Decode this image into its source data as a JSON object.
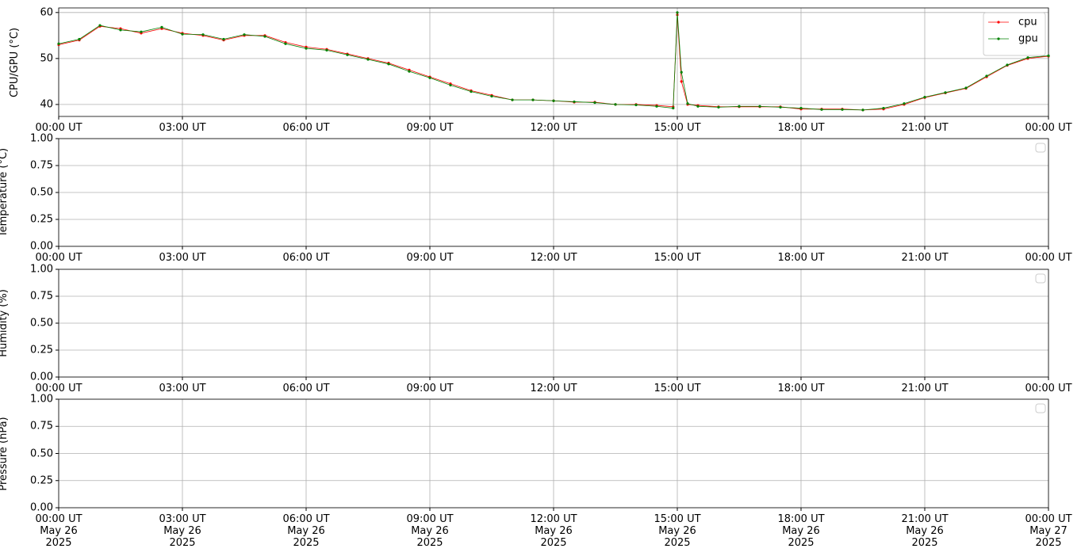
{
  "chart_data": [
    {
      "type": "line",
      "ylabel": "CPU/GPU (°C)",
      "grid": true,
      "legend": "upper right",
      "x": [
        0,
        0.5,
        1,
        1.5,
        2,
        2.5,
        3,
        3.5,
        4,
        4.5,
        5,
        5.5,
        6,
        6.5,
        7,
        7.5,
        8,
        8.5,
        9,
        9.5,
        10,
        10.5,
        11,
        11.5,
        12,
        12.5,
        13,
        13.5,
        14,
        14.5,
        14.9,
        15,
        15.1,
        15.25,
        15.5,
        16,
        16.5,
        17,
        17.5,
        18,
        18.5,
        19,
        19.5,
        20,
        20.5,
        21,
        21.5,
        22,
        22.5,
        23,
        23.5,
        24
      ],
      "series": [
        {
          "name": "cpu",
          "color": "#ff0000",
          "values": [
            53,
            54,
            57,
            56.5,
            55.5,
            56.5,
            55.5,
            55,
            54,
            55,
            55,
            53.5,
            52.5,
            52,
            51,
            50,
            49,
            47.5,
            46,
            44.5,
            43,
            42,
            41,
            41,
            40.8,
            40.5,
            40.5,
            40,
            40,
            39.8,
            39.5,
            59.5,
            45,
            40,
            39.8,
            39.5,
            39.5,
            39.5,
            39.5,
            39,
            39,
            39,
            38.8,
            39,
            40,
            41.5,
            42.5,
            43.5,
            46,
            48.5,
            50,
            50.5
          ]
        },
        {
          "name": "gpu",
          "color": "#008000",
          "values": [
            53.2,
            54.2,
            57.2,
            56.2,
            55.8,
            56.8,
            55.3,
            55.2,
            54.2,
            55.2,
            54.8,
            53.2,
            52.2,
            51.8,
            50.8,
            49.8,
            48.8,
            47.2,
            45.8,
            44.2,
            42.8,
            41.8,
            41,
            41,
            40.8,
            40.6,
            40.4,
            40,
            39.9,
            39.6,
            39.2,
            60,
            47,
            40.2,
            39.6,
            39.4,
            39.6,
            39.6,
            39.4,
            39.2,
            38.9,
            38.9,
            38.8,
            39.2,
            40.2,
            41.6,
            42.6,
            43.6,
            46.2,
            48.6,
            50.2,
            50.6
          ]
        }
      ],
      "xlim": [
        0,
        24
      ],
      "ylim": [
        37.4,
        61.0
      ],
      "yticks": [
        40,
        50,
        60
      ],
      "xticks": [
        {
          "value": 0,
          "label": "00:00 UT"
        },
        {
          "value": 3,
          "label": "03:00 UT"
        },
        {
          "value": 6,
          "label": "06:00 UT"
        },
        {
          "value": 9,
          "label": "09:00 UT"
        },
        {
          "value": 12,
          "label": "12:00 UT"
        },
        {
          "value": 15,
          "label": "15:00 UT"
        },
        {
          "value": 18,
          "label": "18:00 UT"
        },
        {
          "value": 21,
          "label": "21:00 UT"
        },
        {
          "value": 24,
          "label": "00:00 UT"
        }
      ]
    },
    {
      "type": "line",
      "ylabel": "Temperature (°C)",
      "grid": true,
      "legend": "upper right",
      "x": [],
      "series": [],
      "xlim": [
        0,
        24
      ],
      "ylim": [
        0,
        1
      ],
      "yticks": [
        {
          "value": 0,
          "label": "0.00"
        },
        {
          "value": 0.25,
          "label": "0.25"
        },
        {
          "value": 0.5,
          "label": "0.50"
        },
        {
          "value": 0.75,
          "label": "0.75"
        },
        {
          "value": 1,
          "label": "1.00"
        }
      ],
      "xticks": [
        {
          "value": 0,
          "label": "00:00 UT"
        },
        {
          "value": 3,
          "label": "03:00 UT"
        },
        {
          "value": 6,
          "label": "06:00 UT"
        },
        {
          "value": 9,
          "label": "09:00 UT"
        },
        {
          "value": 12,
          "label": "12:00 UT"
        },
        {
          "value": 15,
          "label": "15:00 UT"
        },
        {
          "value": 18,
          "label": "18:00 UT"
        },
        {
          "value": 21,
          "label": "21:00 UT"
        },
        {
          "value": 24,
          "label": "00:00 UT"
        }
      ]
    },
    {
      "type": "line",
      "ylabel": "Humidity (%)",
      "grid": true,
      "legend": "upper right",
      "x": [],
      "series": [],
      "xlim": [
        0,
        24
      ],
      "ylim": [
        0,
        1
      ],
      "yticks": [
        {
          "value": 0,
          "label": "0.00"
        },
        {
          "value": 0.25,
          "label": "0.25"
        },
        {
          "value": 0.5,
          "label": "0.50"
        },
        {
          "value": 0.75,
          "label": "0.75"
        },
        {
          "value": 1,
          "label": "1.00"
        }
      ],
      "xticks": [
        {
          "value": 0,
          "label": "00:00 UT"
        },
        {
          "value": 3,
          "label": "03:00 UT"
        },
        {
          "value": 6,
          "label": "06:00 UT"
        },
        {
          "value": 9,
          "label": "09:00 UT"
        },
        {
          "value": 12,
          "label": "12:00 UT"
        },
        {
          "value": 15,
          "label": "15:00 UT"
        },
        {
          "value": 18,
          "label": "18:00 UT"
        },
        {
          "value": 21,
          "label": "21:00 UT"
        },
        {
          "value": 24,
          "label": "00:00 UT"
        }
      ]
    },
    {
      "type": "line",
      "ylabel": "Pressure (hPa)",
      "grid": true,
      "legend": "upper right",
      "x": [],
      "series": [],
      "xlim": [
        0,
        24
      ],
      "ylim": [
        0,
        1
      ],
      "yticks": [
        {
          "value": 0,
          "label": "0.00"
        },
        {
          "value": 0.25,
          "label": "0.25"
        },
        {
          "value": 0.5,
          "label": "0.50"
        },
        {
          "value": 0.75,
          "label": "0.75"
        },
        {
          "value": 1,
          "label": "1.00"
        }
      ],
      "xticks": [
        {
          "value": 0,
          "label": "00:00 UT\nMay 26\n2025"
        },
        {
          "value": 3,
          "label": "03:00 UT\nMay 26\n2025"
        },
        {
          "value": 6,
          "label": "06:00 UT\nMay 26\n2025"
        },
        {
          "value": 9,
          "label": "09:00 UT\nMay 26\n2025"
        },
        {
          "value": 12,
          "label": "12:00 UT\nMay 26\n2025"
        },
        {
          "value": 15,
          "label": "15:00 UT\nMay 26\n2025"
        },
        {
          "value": 18,
          "label": "18:00 UT\nMay 26\n2025"
        },
        {
          "value": 21,
          "label": "21:00 UT\nMay 26\n2025"
        },
        {
          "value": 24,
          "label": "00:00 UT\nMay 27\n2025"
        }
      ]
    }
  ]
}
